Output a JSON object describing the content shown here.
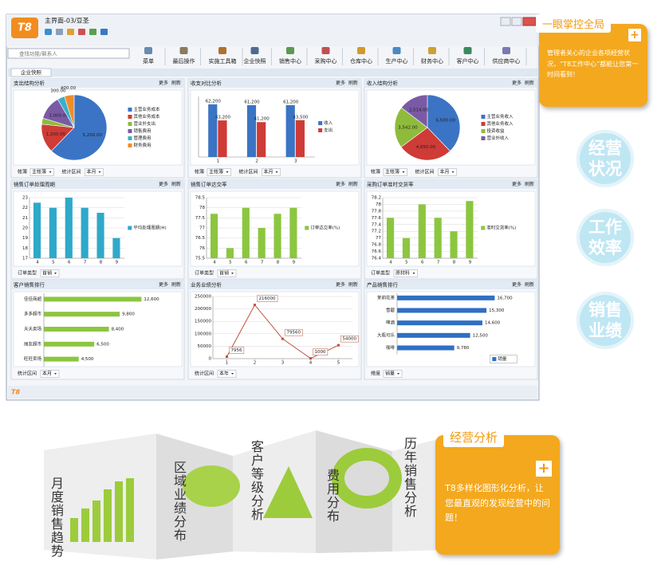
{
  "window": {
    "logo": "T8",
    "title": "主界面-03/豆圣",
    "search": "查找功能/联系人",
    "toolbar": [
      "菜单",
      "最后操作",
      "实施工具箱",
      "企业快照",
      "销售中心",
      "采购中心",
      "仓库中心",
      "生产中心",
      "财务中心",
      "客户中心",
      "供应商中心"
    ],
    "tab": "企业快照",
    "footer_logo": "T8"
  },
  "panel_actions": [
    "更多",
    "刷新"
  ],
  "chart_data": [
    {
      "type": "pie",
      "title": "支出结构分析",
      "categories": [
        "主营业务成本",
        "其他业务成本",
        "营业外支出",
        "销售费用",
        "管理费用",
        "财务费用"
      ],
      "values": [
        5200,
        1200,
        250,
        1000,
        300,
        400
      ],
      "value_labels": [
        "5,200.00",
        "1,200.00",
        null,
        "1,000.00",
        "300.00",
        "400.00"
      ],
      "colors": [
        "#3b74c4",
        "#cf3b36",
        "#8fbb3c",
        "#7a5aa5",
        "#38b0cb",
        "#f08c2a"
      ],
      "controls": [
        {
          "label": "帐簿",
          "value": "主帐簿"
        },
        {
          "label": "统计区间",
          "value": "本月"
        }
      ]
    },
    {
      "type": "bar",
      "title": "收支对比分析",
      "categories": [
        "1",
        "2",
        "3"
      ],
      "series": [
        {
          "name": "收入",
          "color": "#3b74c4",
          "values": [
            62200,
            61200,
            61200
          ],
          "value_labels": [
            "62,200",
            "61,200",
            "61,200"
          ]
        },
        {
          "name": "支出",
          "color": "#cf3b36",
          "values": [
            43200,
            41200,
            43500
          ],
          "value_labels": [
            "43,200",
            "41,200",
            "43,500"
          ]
        }
      ],
      "controls": [
        {
          "label": "帐簿",
          "value": "主帐簿"
        },
        {
          "label": "统计区间",
          "value": "本月"
        }
      ]
    },
    {
      "type": "pie",
      "title": "收入结构分析",
      "categories": [
        "主营业务收入",
        "其他业务收入",
        "投资收益",
        "营业外收入"
      ],
      "values": [
        6500,
        4650,
        3542,
        2514
      ],
      "value_labels": [
        "6,500.00",
        "4,650.00",
        "3,542.00",
        "2,514.00"
      ],
      "colors": [
        "#3b74c4",
        "#cf3b36",
        "#8fbb3c",
        "#7a5aa5"
      ],
      "controls": [
        {
          "label": "帐簿",
          "value": "主帐簿"
        },
        {
          "label": "统计区间",
          "value": "本月"
        }
      ]
    },
    {
      "type": "bar",
      "title": "销售订单处理周期",
      "categories": [
        "4",
        "5",
        "6",
        "7",
        "8",
        "9"
      ],
      "series": [
        {
          "name": "平均处理周期(H)",
          "color": "#2fa9c9",
          "values": [
            22.5,
            22,
            23,
            22,
            21.5,
            19
          ]
        }
      ],
      "ylim": [
        17,
        23
      ],
      "yticks": [
        17,
        18,
        19,
        20,
        21,
        22,
        23
      ],
      "grid": true,
      "controls": [
        {
          "label": "订单类型",
          "value": "首销"
        }
      ]
    },
    {
      "type": "bar",
      "title": "销售订单达交率",
      "categories": [
        "4",
        "5",
        "6",
        "7",
        "8",
        "9"
      ],
      "series": [
        {
          "name": "订单达交率(%)",
          "color": "#8cc63f",
          "values": [
            77.7,
            76,
            78,
            77,
            77.7,
            78
          ]
        }
      ],
      "ylim": [
        75.5,
        78.5
      ],
      "yticks": [
        75.5,
        76,
        76.5,
        77,
        77.5,
        78,
        78.5
      ],
      "grid": true,
      "controls": [
        {
          "label": "订单类型",
          "value": "首销"
        }
      ]
    },
    {
      "type": "bar",
      "title": "采购订单准时交货率",
      "categories": [
        "4",
        "5",
        "6",
        "7",
        "8",
        "9"
      ],
      "series": [
        {
          "name": "准时交货率(%)",
          "color": "#8cc63f",
          "values": [
            77.6,
            77,
            78,
            77.6,
            77.2,
            78.1
          ]
        }
      ],
      "ylim": [
        76.4,
        78.2
      ],
      "yticks": [
        76.4,
        76.6,
        76.8,
        77,
        77.2,
        77.4,
        77.6,
        77.8,
        78,
        78.2
      ],
      "grid": true,
      "controls": [
        {
          "label": "订单类型",
          "value": "原材料"
        }
      ]
    },
    {
      "type": "hbar",
      "title": "客户销售排行",
      "categories": [
        "佳佳商超",
        "多多超市",
        "天天卖场",
        "丽友超市",
        "旺旺卖场"
      ],
      "values": [
        12600,
        9800,
        8400,
        6500,
        4500
      ],
      "value_labels": [
        "12,600",
        "9,800",
        "8,400",
        "6,500",
        "4,500"
      ],
      "color": "#8cc63f",
      "controls": [
        {
          "label": "统计区间",
          "value": "本月"
        }
      ]
    },
    {
      "type": "line",
      "title": "业务业绩分析",
      "x": [
        1,
        2,
        3,
        4,
        5
      ],
      "values": [
        7956,
        216000,
        79560,
        1000,
        54000
      ],
      "color": "#c0503c",
      "xlim": [
        0.5,
        5.5
      ],
      "xticks": [
        1,
        2,
        3,
        4,
        5
      ],
      "ylim": [
        0,
        250000
      ],
      "yticks": [
        0,
        50000,
        100000,
        150000,
        200000,
        250000
      ],
      "grid": true,
      "controls": [
        {
          "label": "统计区间",
          "value": "本年"
        }
      ]
    },
    {
      "type": "hbar",
      "title": "产品销售排行",
      "categories": [
        "茉莉花茶",
        "雪碧",
        "啤酒",
        "大瓶可乐",
        "咖啡"
      ],
      "series": [
        {
          "name": "销量",
          "color": "#2f6fc4",
          "values": [
            16700,
            15300,
            14600,
            12500,
            9780
          ],
          "value_labels": [
            "16,700",
            "15,300",
            "14,600",
            "12,500",
            "9,780"
          ]
        }
      ],
      "controls": [
        {
          "label": "维度",
          "value": "销量"
        }
      ]
    }
  ],
  "callout": {
    "title": "一眼掌控全局",
    "text": "管理者关心的企业各项经营状况，“T8工作中心”都能让您第一时间看到！"
  },
  "badges": [
    "经营状况",
    "工作效率",
    "销售业绩"
  ],
  "banner": {
    "panels": [
      "月度销售趋势",
      "区域业绩分布",
      "客户等级分析",
      "费用分布",
      "历年销售分析"
    ],
    "callout_title": "经营分析",
    "callout_text": "T8多样化图形化分析，让您最直观的发现经营中的问题！"
  }
}
